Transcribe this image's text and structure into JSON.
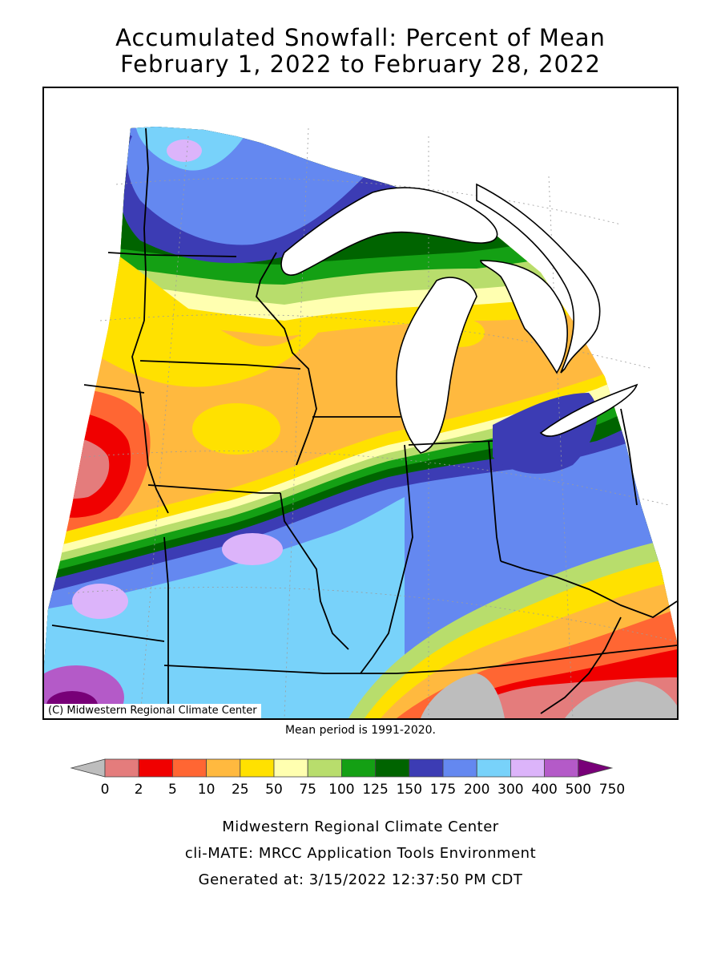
{
  "title": {
    "line1": "Accumulated Snowfall: Percent of Mean",
    "line2": "February 1, 2022 to February 28, 2022"
  },
  "map": {
    "credit": "(C) Midwestern Regional Climate Center",
    "mean_period_note": "Mean period is 1991-2020."
  },
  "legend": {
    "labels": [
      "0",
      "2",
      "5",
      "10",
      "25",
      "50",
      "75",
      "100",
      "125",
      "150",
      "175",
      "200",
      "300",
      "400",
      "500",
      "750"
    ],
    "colors": [
      "#bdbdbd",
      "#e47c7c",
      "#f00000",
      "#ff6633",
      "#ffb93f",
      "#ffe100",
      "#ffffb0",
      "#b8dd6c",
      "#14a014",
      "#006400",
      "#3c3cb4",
      "#6488f0",
      "#78d2fa",
      "#dcb4fa",
      "#b45ac8",
      "#780078"
    ]
  },
  "footer": {
    "line1": "Midwestern Regional Climate Center",
    "line2": "cli-MATE: MRCC Application Tools Environment",
    "line3": "Generated at: 3/15/2022 12:37:50 PM CDT"
  }
}
